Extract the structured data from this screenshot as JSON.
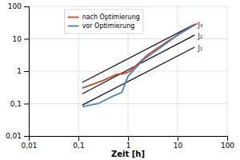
{
  "chart_data": {
    "type": "line",
    "xlabel": "Zeit [h]",
    "log": true,
    "grid": true,
    "legend": "upper left",
    "xlim": [
      0.01,
      100
    ],
    "ylim": [
      0.01,
      100
    ],
    "xticks": [
      {
        "value": 0.01,
        "label": "0,01"
      },
      {
        "value": 0.1,
        "label": "0,1"
      },
      1,
      10,
      100
    ],
    "yticks": [
      {
        "value": 0.01,
        "label": "0,01"
      },
      {
        "value": 0.1,
        "label": "0,1"
      },
      1,
      10,
      100
    ],
    "series": [
      {
        "color": "#111111",
        "x": [
          0.12,
          22.0
        ],
        "values": [
          0.45,
          28.0
        ]
      },
      {
        "color": "#111111",
        "x": [
          0.12,
          22.0
        ],
        "values": [
          0.2,
          13.0
        ]
      },
      {
        "color": "#111111",
        "x": [
          0.12,
          22.0
        ],
        "values": [
          0.09,
          5.5
        ]
      },
      {
        "name": "nach Optimierung",
        "color": "#cc4422",
        "x": [
          0.12,
          0.3,
          0.6,
          0.85,
          1.1,
          2.5,
          6.0,
          13.0,
          25.0
        ],
        "values": [
          0.3,
          0.5,
          0.8,
          0.85,
          1.0,
          3.2,
          8.0,
          17.0,
          30.0
        ]
      },
      {
        "name": "vor Optimierung",
        "color": "#4488bb",
        "x": [
          0.12,
          0.25,
          0.5,
          0.75,
          1.0,
          2.0,
          5.0,
          10.0,
          22.0
        ],
        "values": [
          0.08,
          0.1,
          0.17,
          0.22,
          0.7,
          2.2,
          6.0,
          13.0,
          27.0
        ]
      }
    ],
    "annotations": [
      {
        "text": "J₃",
        "x": 24,
        "y": 27,
        "color": "#111111"
      },
      {
        "text": "J₂",
        "x": 24,
        "y": 12.0,
        "color": "#111111"
      },
      {
        "text": "J₁",
        "x": 24,
        "y": 5.0,
        "color": "#111111"
      }
    ]
  }
}
